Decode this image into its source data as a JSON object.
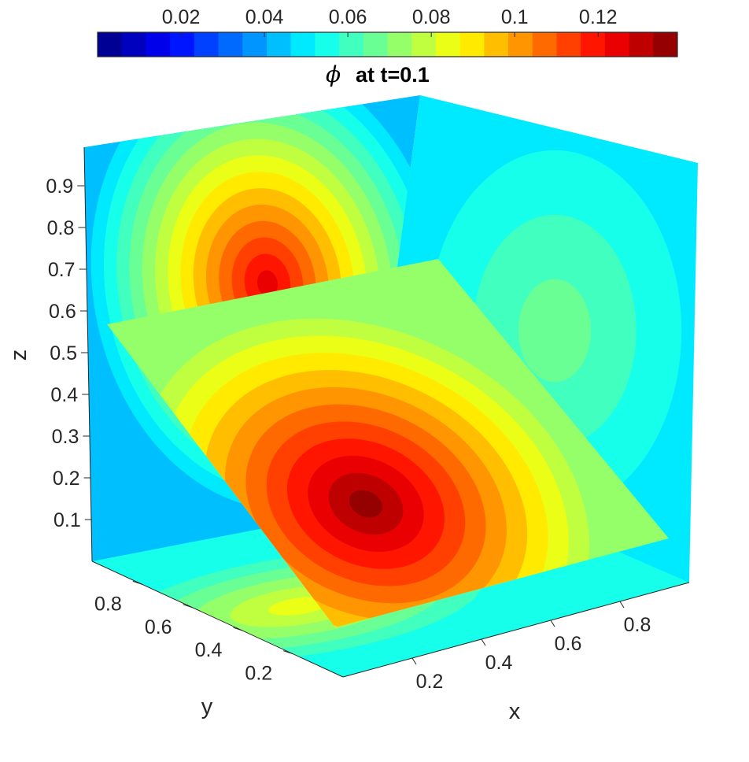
{
  "chart_data": {
    "type": "heatmap",
    "title": "at t=0.1",
    "title_symbol": "ϕ",
    "colorbar": {
      "colormap": "jet",
      "levels": 24,
      "range": [
        0.0,
        0.139
      ],
      "placement": "top",
      "ticks": [
        0.02,
        0.04,
        0.06,
        0.08,
        0.1,
        0.12
      ],
      "tick_labels": [
        "0.02",
        "0.04",
        "0.06",
        "0.08",
        "0.1",
        "0.12"
      ]
    },
    "axes": {
      "x": {
        "label": "x",
        "range": [
          0,
          1
        ],
        "ticks": [
          0.2,
          0.4,
          0.6,
          0.8
        ],
        "tick_labels": [
          "0.2",
          "0.4",
          "0.6",
          "0.8"
        ]
      },
      "y": {
        "label": "y",
        "range": [
          0,
          1
        ],
        "ticks": [
          0.2,
          0.4,
          0.6,
          0.8
        ],
        "tick_labels": [
          "0.2",
          "0.4",
          "0.6",
          "0.8"
        ]
      },
      "z": {
        "label": "z",
        "range": [
          0,
          1
        ],
        "ticks": [
          0.1,
          0.2,
          0.3,
          0.4,
          0.5,
          0.6,
          0.7,
          0.8,
          0.9
        ],
        "tick_labels": [
          "0.1",
          "0.2",
          "0.3",
          "0.4",
          "0.5",
          "0.6",
          "0.7",
          "0.8",
          "0.9"
        ]
      }
    },
    "slices": [
      {
        "plane": "x=0",
        "peak": {
          "y": 0.55,
          "z": 0.7,
          "value": 0.125
        }
      },
      {
        "plane": "y=1",
        "peak": {
          "x": 0.65,
          "z": 0.55,
          "value": 0.07
        }
      },
      {
        "plane": "z=0",
        "peak": {
          "x": 0.3,
          "y": 0.6,
          "value": 0.085
        }
      },
      {
        "plane": "oblique",
        "peak": {
          "x": 0.35,
          "y": 0.45,
          "z": 0.2,
          "value": 0.139
        }
      }
    ],
    "grid": false
  }
}
